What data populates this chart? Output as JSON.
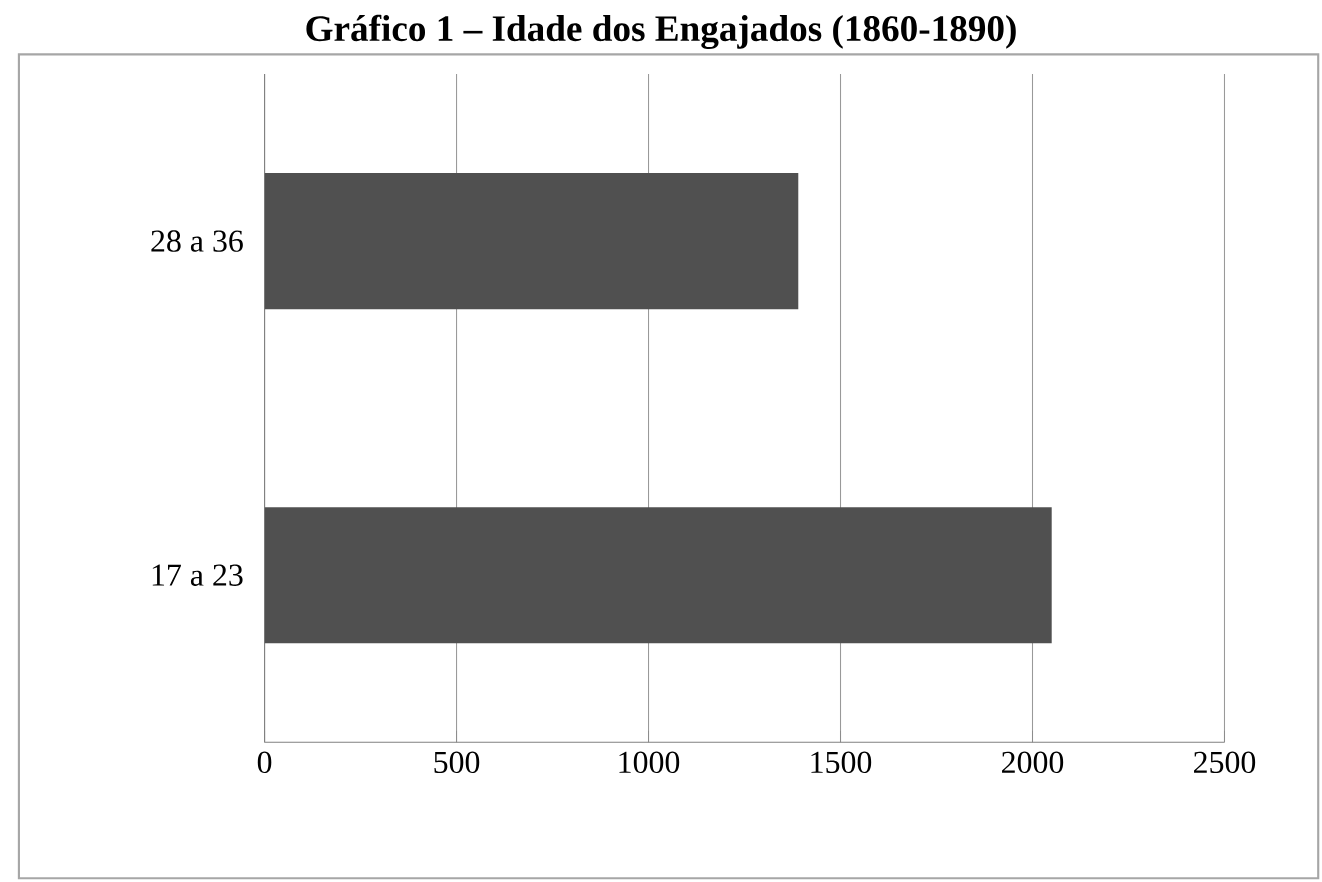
{
  "chart_data": {
    "type": "bar",
    "orientation": "horizontal",
    "title": "Gráfico 1 – Idade dos Engajados (1860-1890)",
    "categories": [
      "28 a 36",
      "17 a 23"
    ],
    "values": [
      1390,
      2050
    ],
    "color": "#505050",
    "xlim": [
      0,
      2500
    ],
    "xticks": [
      0,
      500,
      1000,
      1500,
      2000,
      2500
    ],
    "grid": "x"
  }
}
